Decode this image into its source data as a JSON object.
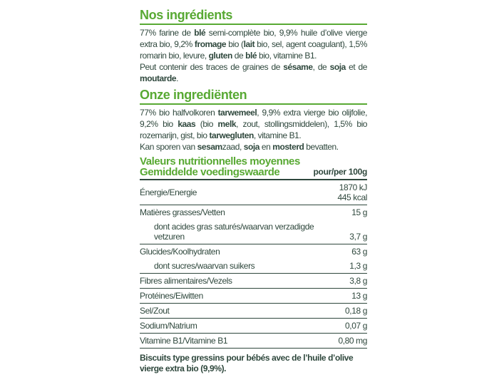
{
  "colors": {
    "heading_green": "#58a933",
    "text_dark": "#2e473c",
    "background": "#ffffff"
  },
  "fr": {
    "heading": "Nos ingrédients",
    "paragraphs": [
      [
        {
          "t": "77% farine de "
        },
        {
          "t": "blé",
          "b": true
        },
        {
          "t": " semi-complète bio, 9,9% huile d’olive vierge extra bio, 9,2% "
        },
        {
          "t": "fromage",
          "b": true
        },
        {
          "t": " bio ("
        },
        {
          "t": "lait",
          "b": true
        },
        {
          "t": " bio, sel, agent coagulant), 1,5% romarin bio, levure, "
        },
        {
          "t": "gluten",
          "b": true
        },
        {
          "t": " de "
        },
        {
          "t": "blé",
          "b": true
        },
        {
          "t": " bio, vitamine B1."
        }
      ],
      [
        {
          "t": "Peut contenir des traces de graines de "
        },
        {
          "t": "sésame",
          "b": true
        },
        {
          "t": ", de "
        },
        {
          "t": "soja",
          "b": true
        },
        {
          "t": " et de "
        },
        {
          "t": "moutarde",
          "b": true
        },
        {
          "t": "."
        }
      ]
    ]
  },
  "nl": {
    "heading": "Onze ingrediënten",
    "paragraphs": [
      [
        {
          "t": "77% bio halfvolkoren "
        },
        {
          "t": "tarwemeel",
          "b": true
        },
        {
          "t": ", 9,9% extra vierge bio olijfolie, 9,2% bio "
        },
        {
          "t": "kaas",
          "b": true
        },
        {
          "t": " (bio "
        },
        {
          "t": "melk",
          "b": true
        },
        {
          "t": ", zout, stollingsmiddelen), 1,5% bio rozemarijn, gist, bio "
        },
        {
          "t": "tarwegluten",
          "b": true
        },
        {
          "t": ", vitamine B1."
        }
      ],
      [
        {
          "t": "Kan sporen van "
        },
        {
          "t": "sesam",
          "b": true
        },
        {
          "t": "zaad, "
        },
        {
          "t": "soja",
          "b": true
        },
        {
          "t": " en "
        },
        {
          "t": "mosterd",
          "b": true
        },
        {
          "t": " bevatten."
        }
      ]
    ]
  },
  "nutrition": {
    "title_fr": "Valeurs nutritionnelles moyennes",
    "title_nl": "Gemiddelde voedingswaarde",
    "per": "pour/per 100g",
    "groups": [
      {
        "rows": [
          {
            "label": "Énergie/Energie",
            "value": "1870 kJ\n445 kcal",
            "energy": true
          }
        ]
      },
      {
        "rows": [
          {
            "label": "Matières grasses/Vetten",
            "value": "15 g"
          },
          {
            "label": "dont acides gras saturés/waarvan verzadigde vetzuren",
            "value": "3,7 g",
            "sub": true
          }
        ]
      },
      {
        "rows": [
          {
            "label": "Glucides/Koolhydraten",
            "value": "63 g"
          },
          {
            "label": "dont sucres/waarvan suikers",
            "value": "1,3 g",
            "sub": true
          }
        ]
      },
      {
        "rows": [
          {
            "label": "Fibres alimentaires/Vezels",
            "value": "3,8 g"
          }
        ]
      },
      {
        "rows": [
          {
            "label": "Protéines/Eiwitten",
            "value": "13 g"
          }
        ]
      },
      {
        "rows": [
          {
            "label": "Sel/Zout",
            "value": "0,18 g"
          }
        ]
      },
      {
        "rows": [
          {
            "label": "Sodium/Natrium",
            "value": "0,07 g"
          }
        ]
      },
      {
        "rows": [
          {
            "label": "Vitamine B1/Vitamine B1",
            "value": "0,80 mg"
          }
        ]
      }
    ]
  },
  "footer": "Biscuits type gressins pour bébés avec de l’huile d’olive vierge extra bio (9,9%)."
}
